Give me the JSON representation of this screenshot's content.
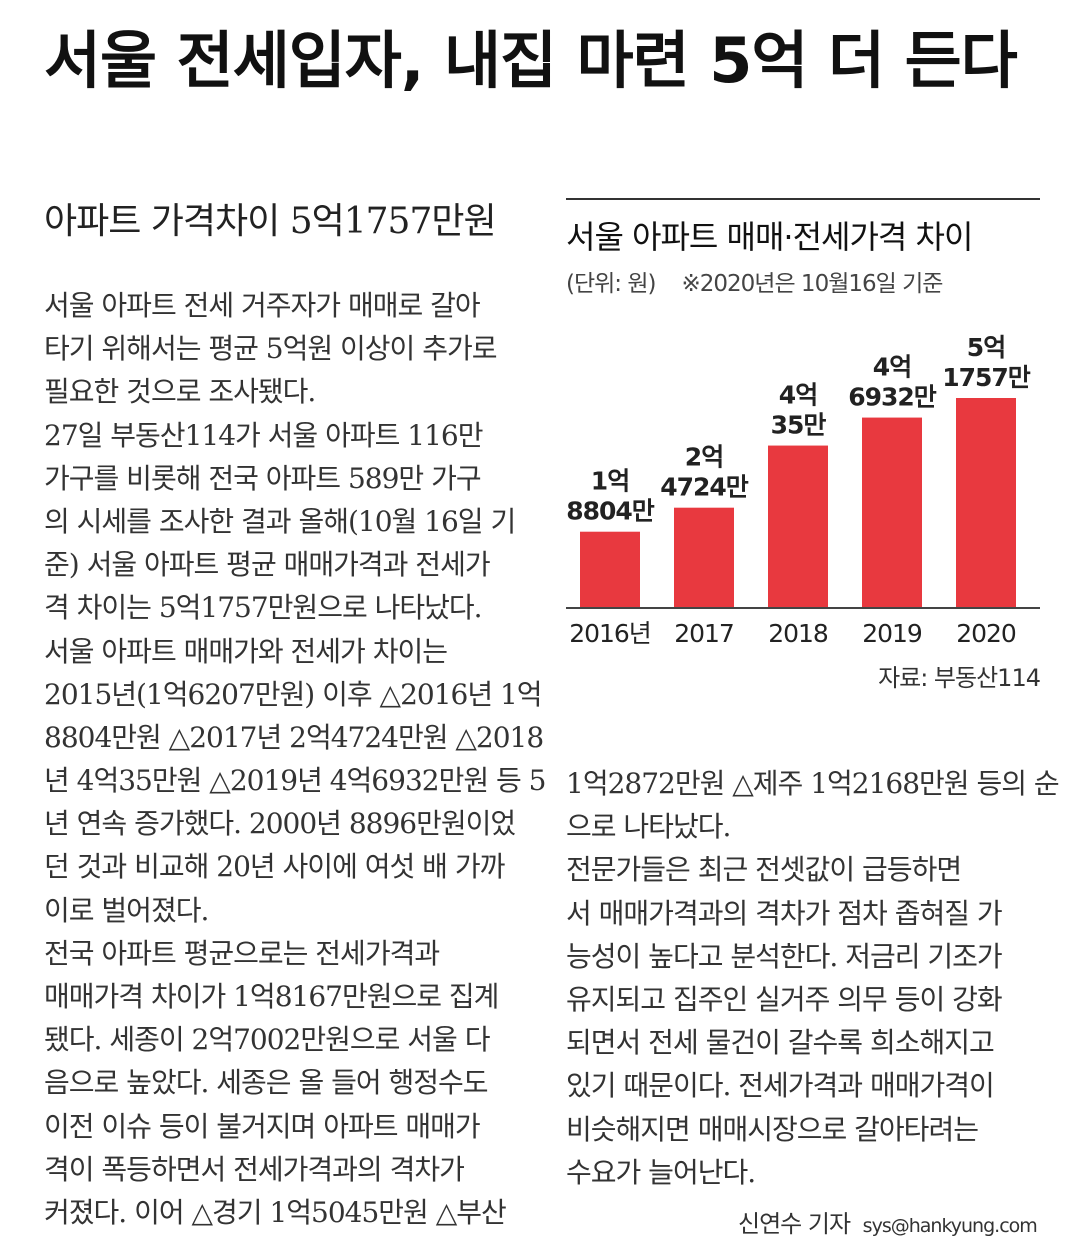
{
  "headline": "서울 전세입자, 내집 마련 5억 더 든다",
  "subhead": "아파트 가격차이 5억1757만원",
  "left_column": [
    "서울 아파트 전세 거주자가 매매로 갈아",
    "타기 위해서는 평균 5억원 이상이 추가로",
    "필요한 것으로 조사됐다.",
    "  27일 부동산114가 서울 아파트 116만",
    "가구를 비롯해 전국 아파트 589만 가구",
    "의 시세를 조사한 결과 올해(10월 16일 기",
    "준) 서울 아파트 평균 매매가격과 전세가",
    "격 차이는 5억1757만원으로 나타났다.",
    "  서울 아파트 매매가와 전세가 차이는",
    "2015년(1억6207만원) 이후 △2016년 1억",
    "8804만원 △2017년 2억4724만원 △2018",
    "년 4억35만원 △2019년 4억6932만원 등 5",
    "년 연속 증가했다. 2000년 8896만원이었",
    "던 것과 비교해 20년 사이에 여섯 배 가까",
    "이로 벌어졌다.",
    "  전국 아파트 평균으로는 전세가격과",
    "매매가격 차이가 1억8167만원으로 집계",
    "됐다. 세종이 2억7002만원으로 서울 다",
    "음으로 높았다. 세종은 올 들어 행정수도",
    "이전 이슈 등이 불거지며 아파트 매매가",
    "격이 폭등하면서 전세가격과의 격차가",
    "커졌다. 이어 △경기 1억5045만원 △부산"
  ],
  "right_column": [
    "1억2872만원 △제주 1억2168만원 등의 순",
    "으로 나타났다.",
    "  전문가들은 최근 전셋값이 급등하면",
    "서 매매가격과의 격차가 점차 좁혀질 가",
    "능성이 높다고 분석한다. 저금리 기조가",
    "유지되고 집주인 실거주 의무 등이 강화",
    "되면서 전세 물건이 갈수록 희소해지고",
    "있기 때문이다. 전세가격과 매매가격이",
    "비슷해지면 매매시장으로 갈아타려는",
    "수요가 늘어난다."
  ],
  "byline": {
    "name": "신연수 기자",
    "email": "sys@hankyung.com"
  },
  "chart_data": {
    "type": "bar",
    "title": "서울 아파트 매매·전세가격 차이",
    "unit_note": "(단위: 원)",
    "date_note": "※2020년은 10월16일 기준",
    "source": "자료: 부동산114",
    "categories": [
      "2016년",
      "2017",
      "2018",
      "2019",
      "2020"
    ],
    "values": [
      188040000,
      247240000,
      400350000,
      469320000,
      517570000
    ],
    "value_labels": [
      [
        "1억",
        "8804만"
      ],
      [
        "2억",
        "4724만"
      ],
      [
        "4억",
        "35만"
      ],
      [
        "4억",
        "6932만"
      ],
      [
        "5억",
        "1757만"
      ]
    ],
    "bar_color": "#e8393f",
    "grid": false,
    "legend": "none"
  }
}
